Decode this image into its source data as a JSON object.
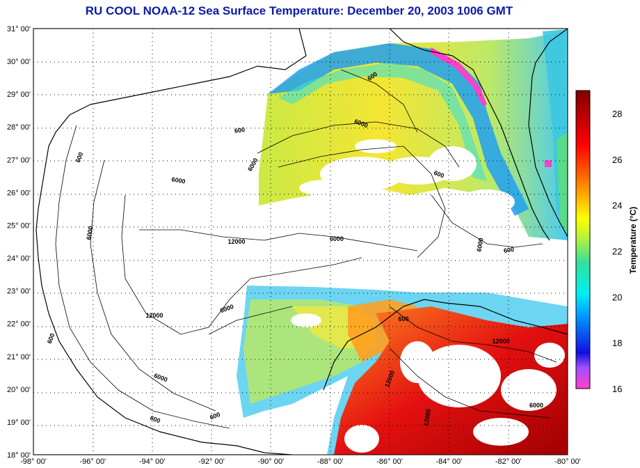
{
  "title": "RU COOL  NOAA-12  Sea Surface Temperature:  December 20, 2003 1006 GMT",
  "latitude_ticks": [
    "31° 00'",
    "30° 00'",
    "29° 00'",
    "28° 00'",
    "27° 00'",
    "26° 00'",
    "25° 00'",
    "24° 00'",
    "23° 00'",
    "22° 00'",
    "21° 00'",
    "20° 00'",
    "19° 00'",
    "18° 00'"
  ],
  "longitude_ticks": [
    "-98° 00'",
    "-96° 00'",
    "-94° 00'",
    "-92° 00'",
    "-90° 00'",
    "-88° 00'",
    "-86° 00'",
    "-84° 00'",
    "-82° 00'",
    "-80° 00'"
  ],
  "colorbar": {
    "title": "Temperature (°C)",
    "range": [
      16,
      29
    ],
    "labels": [
      "28",
      "26",
      "24",
      "22",
      "20",
      "18",
      "16"
    ]
  },
  "contour_labels": [
    "600",
    "600",
    "600",
    "600",
    "600",
    "600",
    "600",
    "600",
    "6000",
    "6000",
    "6000",
    "6000",
    "6000",
    "6000",
    "6000",
    "6000",
    "12000",
    "12000",
    "12000",
    "12000",
    "12000",
    "600",
    "6000"
  ],
  "map": {
    "lon_range": [
      -98,
      -80
    ],
    "lat_range": [
      18,
      31
    ],
    "grid": "dotted",
    "colors": {
      "land_outline": "#000000",
      "title": "#0a1aa8"
    }
  }
}
